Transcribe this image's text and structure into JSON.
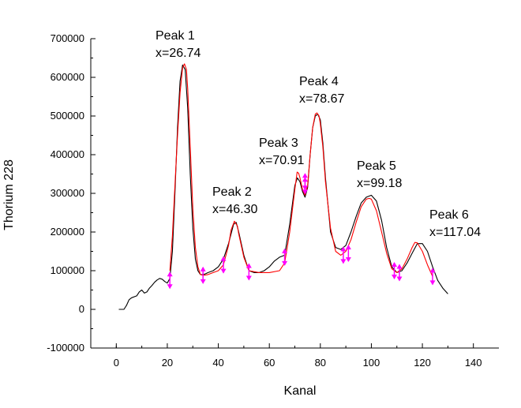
{
  "chart_data": {
    "type": "line",
    "title": "",
    "xlabel": "Kanal",
    "ylabel": "Thorium 228",
    "xlim": [
      -10,
      150
    ],
    "ylim": [
      -100000,
      700000
    ],
    "xticks": [
      0,
      20,
      40,
      60,
      80,
      100,
      120,
      140
    ],
    "yticks": [
      -100000,
      0,
      100000,
      200000,
      300000,
      400000,
      500000,
      600000,
      700000
    ],
    "xtick_labels": [
      "0",
      "20",
      "40",
      "60",
      "80",
      "100",
      "120",
      "140"
    ],
    "ytick_labels": [
      "-100000",
      "0",
      "100000",
      "200000",
      "300000",
      "400000",
      "500000",
      "600000",
      "700000"
    ],
    "grid": false,
    "legend": "none",
    "series": [
      {
        "role": "data",
        "color": "#000000",
        "x": [
          1,
          3,
          4,
          5,
          6,
          8,
          9,
          10,
          11,
          12,
          13,
          14,
          15,
          16,
          17,
          18,
          19,
          20,
          21,
          22,
          23,
          24,
          25,
          26,
          27,
          28,
          29,
          30,
          31,
          32,
          33,
          34,
          35,
          36,
          38,
          40,
          42,
          44,
          46,
          47,
          48,
          50,
          52,
          54,
          56,
          58,
          60,
          62,
          64,
          66,
          68,
          70,
          71,
          72,
          73,
          74,
          75,
          76,
          77,
          78,
          79,
          80,
          81,
          82,
          84,
          86,
          88,
          90,
          92,
          94,
          96,
          98,
          100,
          102,
          104,
          106,
          108,
          110,
          112,
          114,
          116,
          118,
          120,
          122,
          124,
          126,
          128,
          130
        ],
        "y": [
          0,
          0,
          10000,
          25000,
          30000,
          35000,
          45000,
          50000,
          42000,
          45000,
          55000,
          62000,
          70000,
          76000,
          80000,
          78000,
          72000,
          68000,
          80000,
          150000,
          300000,
          470000,
          590000,
          632000,
          620000,
          520000,
          350000,
          210000,
          130000,
          100000,
          90000,
          90000,
          92000,
          95000,
          100000,
          110000,
          130000,
          170000,
          220000,
          225000,
          200000,
          140000,
          100000,
          95000,
          95000,
          100000,
          110000,
          125000,
          135000,
          140000,
          220000,
          320000,
          340000,
          330000,
          305000,
          290000,
          315000,
          400000,
          470000,
          500000,
          505000,
          490000,
          430000,
          340000,
          200000,
          160000,
          155000,
          165000,
          200000,
          240000,
          275000,
          290000,
          295000,
          280000,
          230000,
          160000,
          110000,
          95000,
          100000,
          120000,
          145000,
          170000,
          170000,
          150000,
          110000,
          75000,
          55000,
          40000
        ]
      },
      {
        "role": "fit",
        "color": "#ff0000",
        "x": [
          21,
          22,
          23,
          24,
          25,
          26,
          26.74,
          27.5,
          28,
          29,
          30,
          31,
          32,
          33,
          34,
          36,
          38,
          40,
          42,
          44,
          45,
          46.3,
          47.5,
          48,
          50,
          52,
          56,
          60,
          64,
          66,
          68,
          70,
          70.91,
          71.5,
          72,
          73,
          74,
          75,
          76,
          77,
          78,
          78.67,
          79.5,
          80,
          81,
          82,
          84,
          86,
          88,
          90,
          92,
          94,
          96,
          98,
          99.18,
          100,
          102,
          104,
          106,
          108,
          110,
          112,
          114,
          116,
          117.04,
          118,
          120,
          122,
          124
        ],
        "y": [
          100000,
          190000,
          320000,
          450000,
          560000,
          625000,
          635000,
          620000,
          570000,
          420000,
          260000,
          160000,
          110000,
          90000,
          88000,
          90000,
          95000,
          100000,
          115000,
          165000,
          205000,
          228000,
          215000,
          195000,
          135000,
          100000,
          95000,
          95000,
          100000,
          120000,
          200000,
          310000,
          355000,
          352000,
          340000,
          310000,
          295000,
          320000,
          400000,
          470000,
          505000,
          508000,
          500000,
          480000,
          420000,
          330000,
          210000,
          150000,
          140000,
          150000,
          180000,
          225000,
          265000,
          285000,
          287000,
          285000,
          255000,
          200000,
          145000,
          105000,
          95000,
          105000,
          130000,
          160000,
          173000,
          172000,
          150000,
          115000,
          85000
        ]
      }
    ],
    "markers": {
      "color": "#ff00ff",
      "x": [
        21,
        34,
        42,
        52,
        66,
        74,
        74,
        89,
        91,
        109,
        111,
        124
      ],
      "y": [
        75000,
        88000,
        115000,
        97000,
        135000,
        320000,
        330000,
        140000,
        145000,
        100000,
        95000,
        85000
      ]
    },
    "annotations": [
      {
        "line1": "Peak 1",
        "line2": "x=26.74"
      },
      {
        "line1": "Peak 2",
        "line2": "x=46.30"
      },
      {
        "line1": "Peak 3",
        "line2": "x=70.91"
      },
      {
        "line1": "Peak 4",
        "line2": "x=78.67"
      },
      {
        "line1": "Peak 5",
        "line2": "x=99.18"
      },
      {
        "line1": "Peak 6",
        "line2": "x=117.04"
      }
    ]
  }
}
